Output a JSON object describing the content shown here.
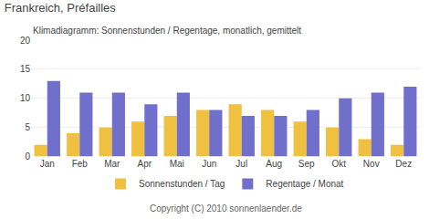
{
  "chart_data": {
    "type": "bar",
    "title": "Frankreich, Préfailles",
    "subtitle": "Klimadiagramm: Sonnenstunden / Regentage, monatlich, gemittelt",
    "categories": [
      "Jan",
      "Feb",
      "Mar",
      "Apr",
      "Mai",
      "Jun",
      "Jul",
      "Aug",
      "Sep",
      "Okt",
      "Nov",
      "Dez"
    ],
    "series": [
      {
        "name": "Sonnenstunden / Tag",
        "color": "#f0c040",
        "values": [
          2,
          4,
          5,
          6,
          7,
          8,
          9,
          8,
          6,
          5,
          3,
          2
        ]
      },
      {
        "name": "Regentage / Monat",
        "color": "#7070cc",
        "values": [
          13,
          11,
          11,
          9,
          11,
          8,
          7,
          7,
          8,
          10,
          11,
          12
        ]
      }
    ],
    "ylim": [
      0,
      20
    ],
    "yticks": [
      0,
      5,
      10,
      15,
      20
    ],
    "grid": true,
    "legend": "bottom",
    "annotations": [
      "Copyright (C) 2010 sonnenlaender.de"
    ]
  }
}
